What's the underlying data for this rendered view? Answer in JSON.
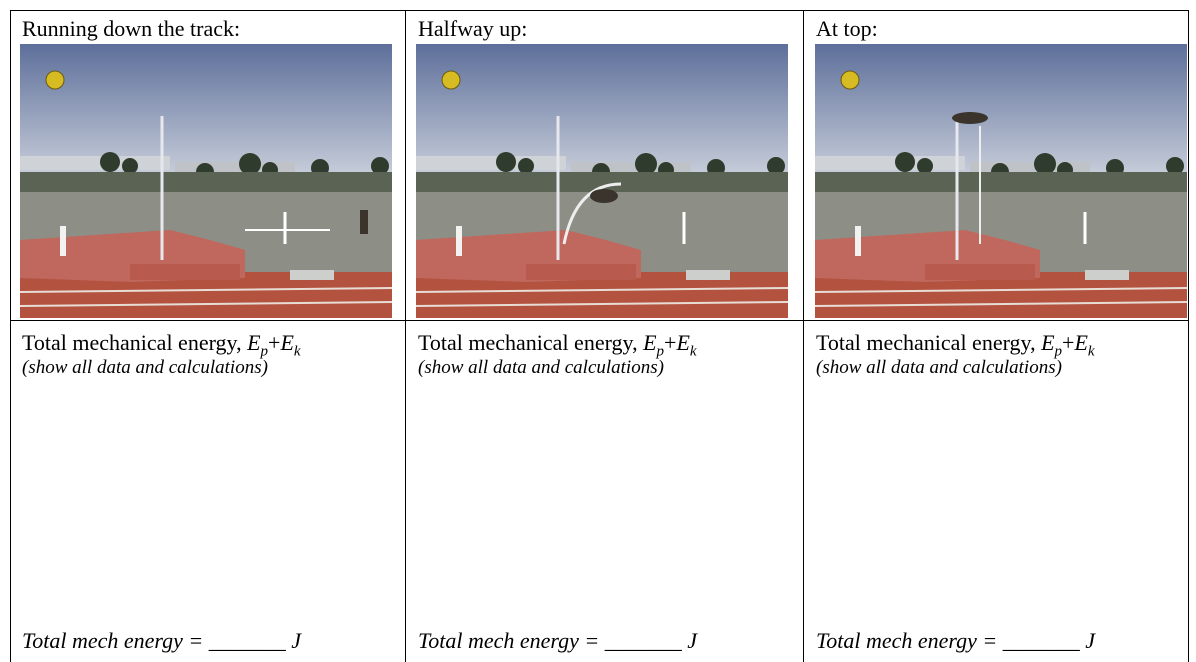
{
  "columns": [
    {
      "heading": "Running down the track:",
      "energy_label": "Total mechanical energy, ",
      "symbol_1": "E",
      "sub_1": "p",
      "plus": "+",
      "symbol_2": "E",
      "sub_2": "k",
      "instruction": "(show all data and calculations)",
      "answer": "Total mech energy = _______ J"
    },
    {
      "heading": "Halfway up:",
      "energy_label": "Total mechanical energy, ",
      "symbol_1": "E",
      "sub_1": "p",
      "plus": "+",
      "symbol_2": "E",
      "sub_2": "k",
      "instruction": "(show all data and calculations)",
      "answer": "Total mech energy = _______ J"
    },
    {
      "heading": "At top:",
      "energy_label": "Total mechanical energy, ",
      "symbol_1": "E",
      "sub_1": "p",
      "plus": "+",
      "symbol_2": "E",
      "sub_2": "k",
      "instruction": "(show all data and calculations)",
      "answer": "Total mech energy = _______ J"
    }
  ]
}
